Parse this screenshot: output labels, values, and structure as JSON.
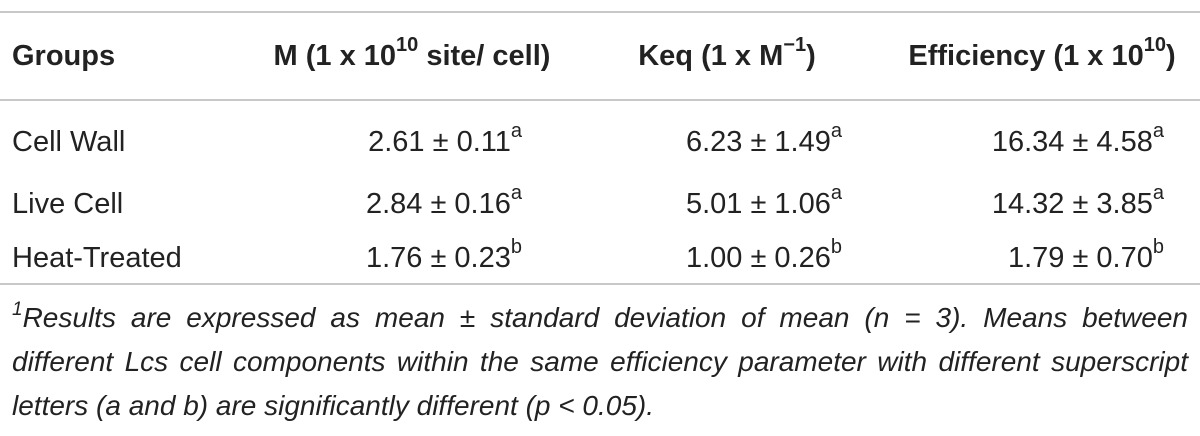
{
  "table": {
    "headers": [
      {
        "text": "Groups",
        "sup": ""
      },
      {
        "text": "M (1 x 10",
        "sup": "10",
        "after": " site/ cell)"
      },
      {
        "text": "Keq (1 x M",
        "sup": "−1",
        "after": ")"
      },
      {
        "text": "Efficiency (1 x 10",
        "sup": "10",
        "after": ")"
      }
    ],
    "rows": [
      {
        "group": "Cell Wall",
        "m": "2.61 ± 0.11",
        "m_sup": "a",
        "keq": "6.23 ± 1.49",
        "keq_sup": "a",
        "eff": "16.34 ± 4.58",
        "eff_sup": "a"
      },
      {
        "group": "Live Cell",
        "m": "2.84 ± 0.16",
        "m_sup": "a",
        "keq": "5.01 ± 1.06",
        "keq_sup": "a",
        "eff": "14.32 ± 3.85",
        "eff_sup": "a"
      },
      {
        "group": "Heat-Treated",
        "m": "1.76 ± 0.23",
        "m_sup": "b",
        "keq": "1.00 ± 0.26",
        "keq_sup": "b",
        "eff": "1.79 ± 0.70",
        "eff_sup": "b"
      }
    ]
  },
  "footnote": {
    "marker": "1",
    "text": "Results are expressed as mean ± standard deviation of mean (n = 3). Means between different Lcs cell components within the same efficiency parameter with different superscript letters (a and b) are significantly different (p < 0.05)."
  }
}
